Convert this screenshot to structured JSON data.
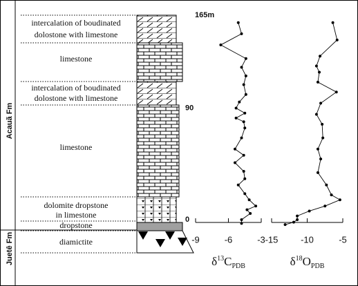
{
  "formations": [
    "Acauã Fm",
    "Juetê Fm"
  ],
  "units": [
    [
      "intercalation of boudinated",
      "dolostone with limestone"
    ],
    [
      "limestone"
    ],
    [
      "intercalation of boudinated",
      "dolostone with limestone"
    ],
    [
      "limestone"
    ],
    [
      "dolomite dropstone",
      "in limestone"
    ],
    [
      "dropstone"
    ],
    [
      "diamictite"
    ]
  ],
  "height_axis": {
    "ylim": [
      0,
      165
    ],
    "yticks": [
      0,
      90,
      {
        "value": 165,
        "label": "165m"
      }
    ]
  },
  "chart_data": [
    {
      "type": "line",
      "label": {
        "delta": "δ",
        "sup": "13",
        "element": "C",
        "sub": "PDB"
      },
      "xlim": [
        -9,
        -3
      ],
      "xticks": [
        -9,
        -6,
        -3
      ],
      "color": "#000000",
      "heights": [
        159,
        150,
        141,
        130,
        123,
        116,
        109,
        101,
        95,
        90,
        86,
        82,
        79,
        74,
        66,
        57,
        52,
        46,
        39,
        33,
        28,
        21,
        16,
        11,
        8,
        5,
        0,
        -3
      ],
      "values": [
        -5.1,
        -4.8,
        -6.7,
        -4.4,
        -4.8,
        -4.4,
        -4.6,
        -4.4,
        -5.0,
        -5.3,
        -4.5,
        -5.3,
        -4.6,
        -4.5,
        -4.8,
        -5.4,
        -4.6,
        -5.4,
        -4.6,
        -4.5,
        -5.1,
        -4.5,
        -4.1,
        -3.5,
        -4.3,
        -4.0,
        -4.8,
        -4.8
      ]
    },
    {
      "type": "line",
      "label": {
        "delta": "δ",
        "sup": "18",
        "element": "O",
        "sub": "PDB"
      },
      "xlim": [
        -15,
        -5
      ],
      "xticks": [
        -15,
        -10,
        -5
      ],
      "color": "#000000",
      "heights": [
        159,
        145,
        132,
        124,
        119,
        111,
        103,
        94,
        85,
        77,
        66,
        57,
        49,
        38,
        28,
        20,
        16,
        11,
        7,
        3,
        0,
        -2,
        -4
      ],
      "values": [
        -6.4,
        -5.8,
        -8.2,
        -8.7,
        -8.3,
        -8.5,
        -5.9,
        -8.1,
        -8.7,
        -7.9,
        -7.8,
        -8.5,
        -8.1,
        -8.5,
        -7.3,
        -6.6,
        -5.4,
        -7.5,
        -9.7,
        -11.4,
        -11.4,
        -11.9,
        -13.1
      ]
    }
  ]
}
